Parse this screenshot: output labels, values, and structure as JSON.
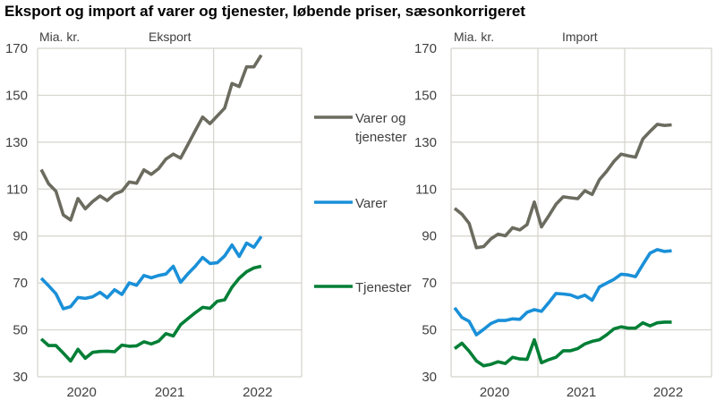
{
  "title": "Eksport og import af varer og tjenester, løbende priser, sæsonkorrigeret",
  "colors": {
    "Varer og tjenester": "#6b6b5f",
    "Varer": "#1a90d8",
    "Tjenester": "#007f36",
    "grid": "#d4d3cc"
  },
  "legend": [
    {
      "label_lines": [
        "Varer og",
        "tjenester"
      ],
      "series": "Varer og tjenester"
    },
    {
      "label_lines": [
        "Varer"
      ],
      "series": "Varer"
    },
    {
      "label_lines": [
        "Tjenester"
      ],
      "series": "Tjenester"
    }
  ],
  "chart_data": [
    {
      "type": "line",
      "panel_title": "Eksport",
      "ylabel": "Mia. kr.",
      "ylim": [
        30,
        170
      ],
      "yticks": [
        30,
        50,
        70,
        90,
        110,
        130,
        150,
        170
      ],
      "xticks": [
        "2020",
        "2021",
        "2022"
      ],
      "x_frequency": "monthly, Jan 2020 – Jul 2022",
      "grid": true,
      "series": [
        {
          "name": "Varer og tjenester",
          "values": [
            118.3,
            112.3,
            109.1,
            99.0,
            96.8,
            106.0,
            101.6,
            104.7,
            107.1,
            105.1,
            107.9,
            109.1,
            113.0,
            112.5,
            118.2,
            116.3,
            118.7,
            122.8,
            124.9,
            123.2,
            129.0,
            134.9,
            140.7,
            137.9,
            141.2,
            144.5,
            155.0,
            153.7,
            162.1,
            162.1,
            167.1
          ]
        },
        {
          "name": "Varer",
          "values": [
            72.0,
            68.8,
            65.4,
            59.0,
            59.9,
            63.8,
            63.4,
            64.1,
            66.0,
            63.7,
            67.1,
            65.1,
            70.0,
            69.0,
            73.2,
            72.2,
            73.2,
            73.8,
            77.1,
            70.3,
            73.9,
            77.1,
            80.9,
            78.3,
            78.6,
            81.5,
            86.2,
            81.3,
            87.0,
            85.2,
            89.8
          ]
        },
        {
          "name": "Tjenester",
          "values": [
            46.1,
            43.3,
            43.3,
            40.1,
            36.7,
            41.7,
            37.9,
            40.4,
            40.8,
            40.9,
            40.7,
            43.5,
            43.0,
            43.2,
            44.9,
            44.0,
            45.2,
            48.4,
            47.4,
            52.2,
            54.8,
            57.3,
            59.6,
            59.2,
            62.2,
            62.8,
            68.2,
            72.0,
            74.8,
            76.4,
            77.1
          ]
        }
      ]
    },
    {
      "type": "line",
      "panel_title": "Import",
      "ylabel": "Mia. kr.",
      "ylim": [
        30,
        170
      ],
      "yticks": [
        30,
        50,
        70,
        90,
        110,
        130,
        150,
        170
      ],
      "xticks": [
        "2020",
        "2021",
        "2022"
      ],
      "x_frequency": "monthly, Jan 2020 – Jul 2022",
      "grid": true,
      "series": [
        {
          "name": "Varer og tjenester",
          "values": [
            101.8,
            99.3,
            95.4,
            85.0,
            85.5,
            88.8,
            90.8,
            90.1,
            93.5,
            92.6,
            94.9,
            104.5,
            93.9,
            98.6,
            103.5,
            106.7,
            106.3,
            105.9,
            109.3,
            107.7,
            114.0,
            117.6,
            121.8,
            124.9,
            124.2,
            123.6,
            131.3,
            134.6,
            137.6,
            137.1,
            137.4
          ]
        },
        {
          "name": "Varer",
          "values": [
            59.4,
            55.3,
            53.6,
            47.9,
            50.2,
            52.7,
            54.0,
            54.0,
            54.7,
            54.5,
            57.5,
            58.6,
            57.9,
            61.6,
            65.5,
            65.3,
            64.9,
            63.7,
            64.8,
            62.6,
            68.3,
            69.9,
            71.5,
            73.7,
            73.4,
            72.7,
            77.8,
            82.7,
            84.2,
            83.4,
            83.7
          ]
        },
        {
          "name": "Tjenester",
          "values": [
            42.0,
            44.3,
            40.9,
            36.8,
            34.7,
            35.3,
            36.4,
            35.7,
            38.3,
            37.6,
            37.4,
            45.8,
            36.0,
            37.3,
            38.3,
            41.1,
            41.1,
            42.0,
            44.0,
            45.1,
            45.8,
            47.9,
            50.4,
            51.3,
            50.7,
            50.7,
            53.0,
            51.7,
            53.0,
            53.3,
            53.3
          ]
        }
      ]
    }
  ]
}
